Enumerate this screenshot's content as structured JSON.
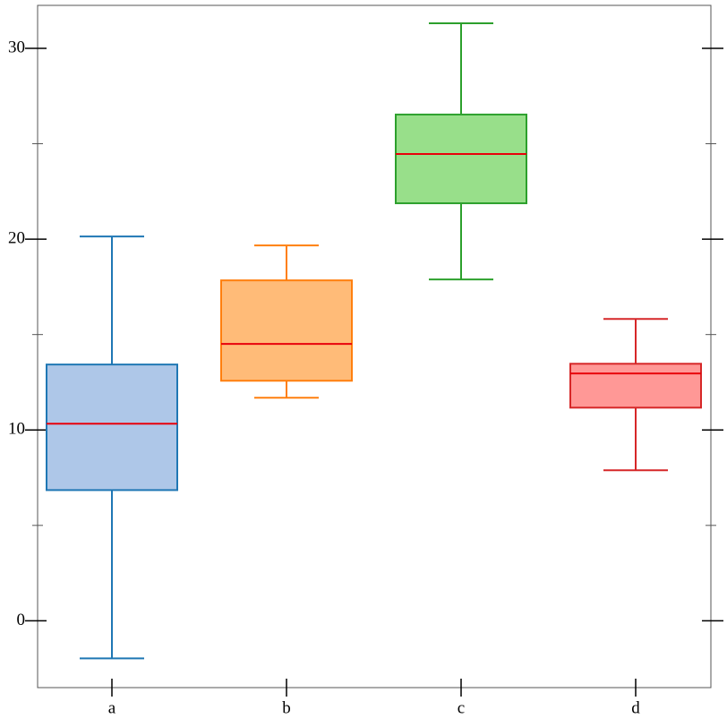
{
  "chart_data": {
    "type": "box",
    "categories": [
      "a",
      "b",
      "c",
      "d"
    ],
    "boxes": [
      {
        "min": -1.97,
        "q1": 6.85,
        "median": 10.33,
        "q3": 13.43,
        "max": 20.14
      },
      {
        "min": 11.69,
        "q1": 12.58,
        "median": 14.51,
        "q3": 17.84,
        "max": 19.67
      },
      {
        "min": 17.89,
        "q1": 21.88,
        "median": 24.46,
        "q3": 26.53,
        "max": 31.31
      },
      {
        "min": 7.89,
        "q1": 11.17,
        "median": 12.96,
        "q3": 13.47,
        "max": 15.82
      }
    ],
    "fill_colors": [
      "#aec7e8",
      "#ffbb78",
      "#98df8a",
      "#ff9896"
    ],
    "edge_colors": [
      "#1f77b4",
      "#ff7f0e",
      "#2ca02c",
      "#d62728"
    ],
    "median_color": "#e8000b",
    "ylim": [
      -3.5,
      32.25
    ],
    "yticks": [
      0,
      10,
      20,
      30
    ],
    "yticks_minor": [
      5,
      15,
      25
    ]
  }
}
